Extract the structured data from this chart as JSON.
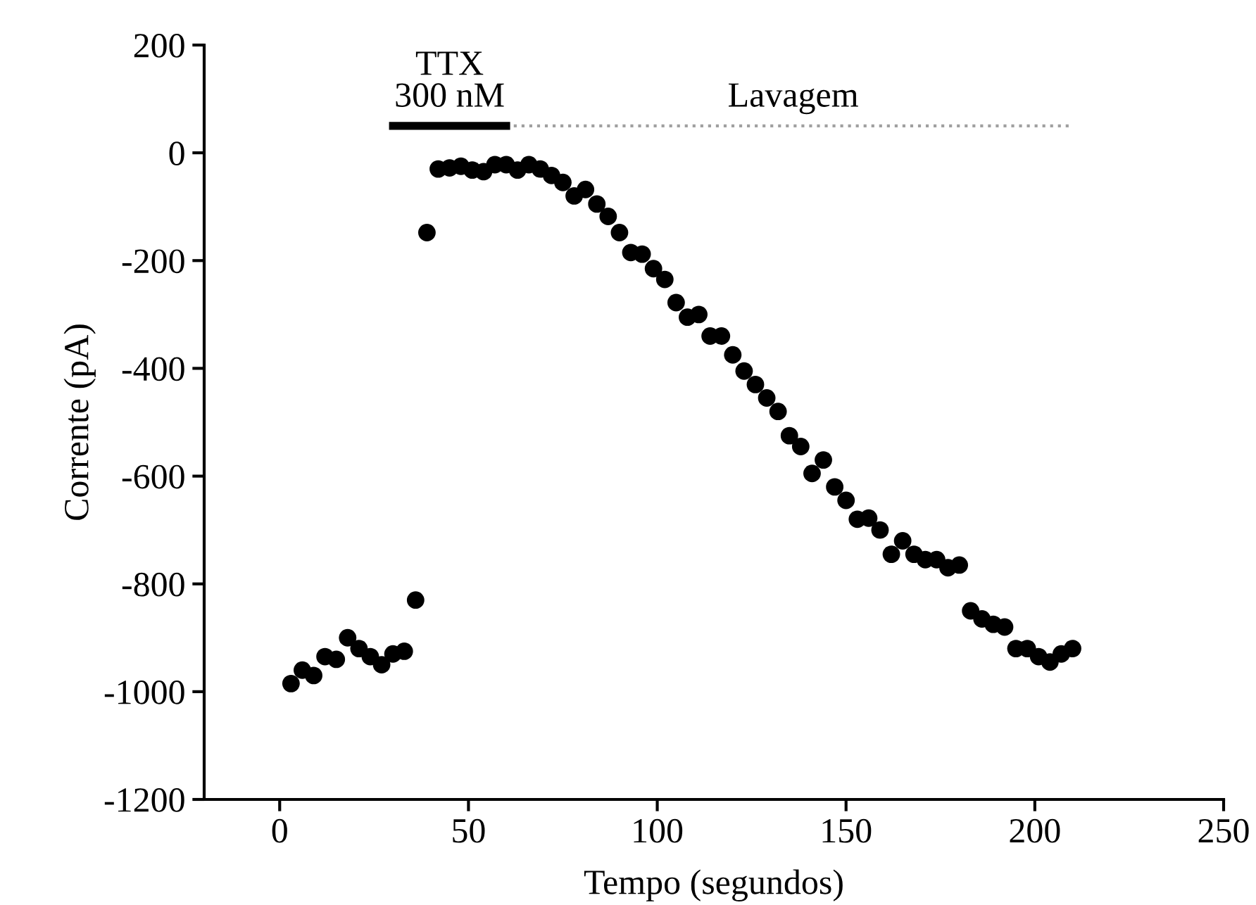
{
  "chart_data": {
    "type": "scatter",
    "xlabel": "Tempo (segundos)",
    "ylabel": "Corrente (pA)",
    "xlim": [
      -20,
      250
    ],
    "xticks": [
      0,
      50,
      100,
      150,
      200,
      250
    ],
    "ylim": [
      -1200,
      200
    ],
    "yticks": [
      -1200,
      -1000,
      -800,
      -600,
      -400,
      -200,
      0,
      200
    ],
    "grid": false,
    "legend": false,
    "series": [
      {
        "marker": "circle",
        "color": "#000000",
        "x": [
          3,
          6,
          9,
          12,
          15,
          18,
          21,
          24,
          27,
          30,
          33,
          36,
          39,
          42,
          45,
          48,
          51,
          54,
          57,
          60,
          63,
          66,
          69,
          72,
          75,
          78,
          81,
          84,
          87,
          90,
          93,
          96,
          99,
          102,
          105,
          108,
          111,
          114,
          117,
          120,
          123,
          126,
          129,
          132,
          135,
          138,
          141,
          144,
          147,
          150,
          153,
          156,
          159,
          162,
          165,
          168,
          171,
          174,
          177,
          180,
          183,
          186,
          189,
          192,
          195,
          198,
          201,
          204,
          207,
          210
        ],
        "values": [
          -985,
          -960,
          -970,
          -935,
          -940,
          -900,
          -920,
          -935,
          -950,
          -930,
          -925,
          -830,
          -148,
          -30,
          -28,
          -25,
          -32,
          -35,
          -22,
          -22,
          -32,
          -22,
          -30,
          -42,
          -55,
          -80,
          -68,
          -95,
          -118,
          -148,
          -185,
          -188,
          -215,
          -235,
          -278,
          -305,
          -300,
          -340,
          -340,
          -375,
          -405,
          -430,
          -455,
          -480,
          -525,
          -545,
          -595,
          -570,
          -620,
          -645,
          -680,
          -678,
          -700,
          -745,
          -720,
          -745,
          -755,
          -755,
          -770,
          -765,
          -850,
          -865,
          -875,
          -880,
          -920,
          -920,
          -935,
          -945,
          -930,
          -920
        ]
      },
      {
        "type": "line",
        "name": "TTX\n300 nM",
        "color": "#000000",
        "line_style": "solid",
        "x": [
          30,
          60
        ],
        "values": [
          50,
          50
        ]
      },
      {
        "type": "line",
        "name": "Lavagem",
        "color": "#a0a0a0",
        "line_style": "dotted",
        "x": [
          62,
          210
        ],
        "values": [
          50,
          50
        ]
      }
    ]
  }
}
